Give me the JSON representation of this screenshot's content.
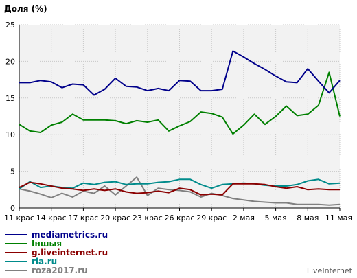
{
  "chart_data": {
    "type": "line",
    "title": "Доля (%)",
    "ylim": [
      0,
      25
    ],
    "y_ticks": [
      "0",
      "5",
      "10",
      "15",
      "20",
      "25"
    ],
    "x_tick_labels": [
      "11 крас",
      "14 крас",
      "17 крас",
      "20 крас",
      "23 крас",
      "26 крас",
      "29 крас",
      "2 мая",
      "5 мая",
      "8 мая",
      "11 мая"
    ],
    "grid": true,
    "legend_position": "bottom-left",
    "series": [
      {
        "name": "mediametrics.ru",
        "color": "#00008b",
        "values": [
          17.1,
          17.1,
          17.4,
          17.2,
          16.4,
          16.9,
          16.8,
          15.4,
          16.2,
          17.7,
          16.6,
          16.5,
          16.0,
          16.3,
          16.0,
          17.4,
          17.3,
          16.0,
          16.0,
          16.2,
          21.4,
          20.6,
          19.7,
          18.9,
          18.0,
          17.2,
          17.1,
          19.0,
          17.3,
          15.7,
          17.4
        ]
      },
      {
        "name": "Іншыя",
        "color": "#008000",
        "values": [
          11.4,
          10.5,
          10.3,
          11.3,
          11.7,
          12.8,
          12.0,
          12.0,
          12.0,
          11.9,
          11.5,
          11.9,
          11.7,
          12.0,
          10.5,
          11.2,
          11.8,
          13.1,
          12.9,
          12.4,
          10.1,
          11.3,
          12.8,
          11.4,
          12.5,
          13.9,
          12.6,
          12.8,
          14.0,
          18.5,
          12.5
        ]
      },
      {
        "name": "g.liveinternet.ru",
        "color": "#8b0000",
        "values": [
          2.8,
          3.5,
          3.3,
          3.0,
          2.7,
          2.6,
          2.4,
          2.6,
          2.4,
          2.6,
          2.2,
          2.0,
          2.1,
          2.3,
          2.1,
          2.7,
          2.5,
          1.8,
          1.9,
          1.8,
          3.3,
          3.3,
          3.3,
          3.2,
          2.9,
          2.7,
          2.9,
          2.5,
          2.6,
          2.5,
          2.5
        ]
      },
      {
        "name": "ria.ru",
        "color": "#008b8b",
        "values": [
          2.6,
          3.6,
          2.8,
          3.0,
          2.8,
          2.7,
          3.4,
          3.2,
          3.5,
          3.6,
          3.2,
          3.3,
          3.3,
          3.5,
          3.6,
          3.9,
          3.9,
          3.2,
          2.7,
          3.2,
          3.3,
          3.4,
          3.3,
          3.1,
          3.0,
          3.0,
          3.2,
          3.7,
          3.9,
          3.3,
          3.4
        ]
      },
      {
        "name": "roza2017.ru",
        "color": "#808080",
        "values": [
          2.6,
          2.3,
          1.9,
          1.4,
          2.0,
          1.5,
          2.3,
          2.0,
          3.0,
          1.8,
          3.0,
          4.2,
          1.7,
          2.7,
          2.5,
          2.4,
          2.2,
          1.5,
          2.0,
          1.7,
          1.3,
          1.1,
          0.9,
          0.8,
          0.7,
          0.7,
          0.5,
          0.5,
          0.5,
          0.4,
          0.5
        ]
      }
    ]
  },
  "credit": "LiveInternet"
}
